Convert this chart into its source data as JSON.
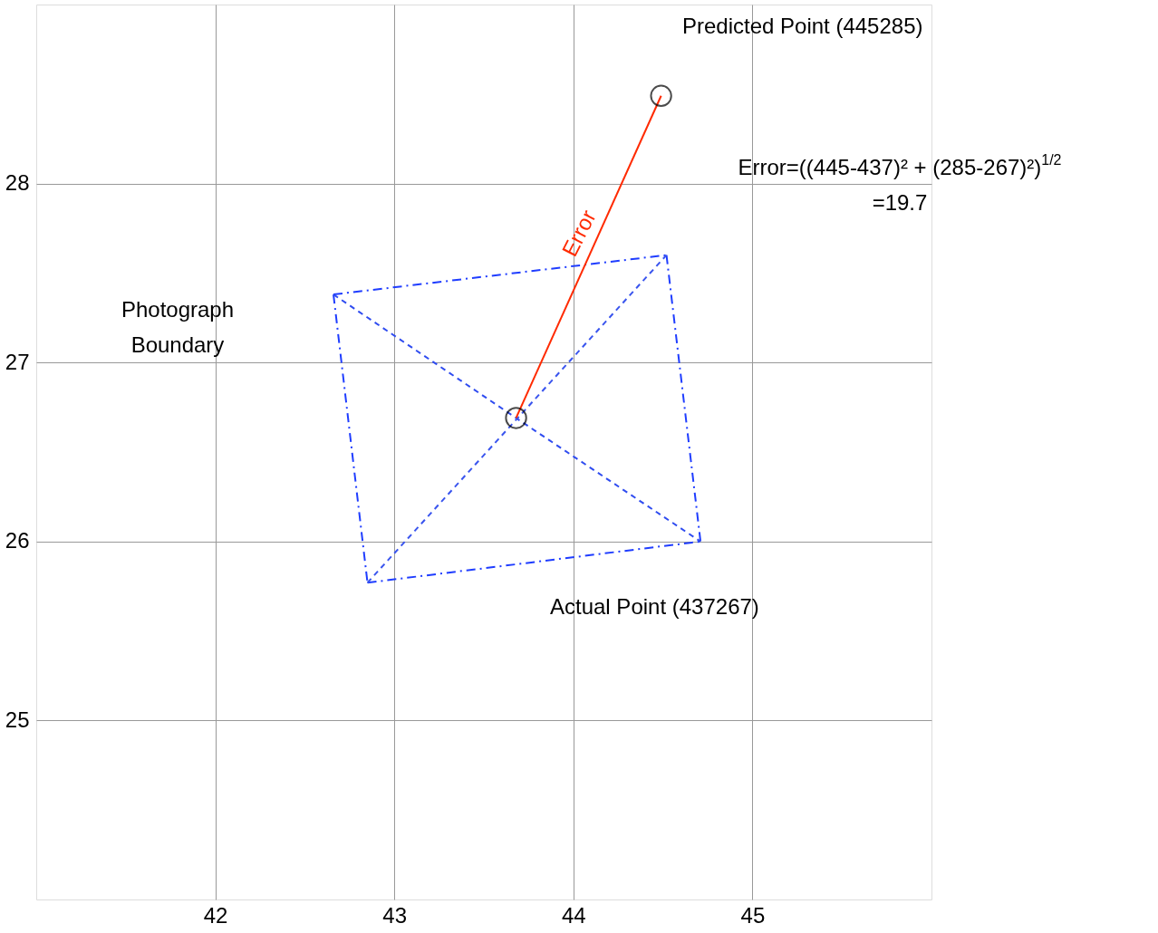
{
  "chart_data": {
    "type": "line",
    "xlim": [
      41,
      46
    ],
    "ylim": [
      24,
      29
    ],
    "xticks": [
      42,
      43,
      44,
      45
    ],
    "yticks": [
      25,
      26,
      27,
      28
    ],
    "grid": true,
    "series": [
      {
        "color": "#1f3dff",
        "line_style": "dashdot",
        "x": [
          42.66,
          44.52
        ],
        "values": [
          27.38,
          27.6
        ]
      },
      {
        "color": "#1f3dff",
        "line_style": "dashdot",
        "x": [
          44.52,
          44.71
        ],
        "values": [
          27.6,
          26.0
        ]
      },
      {
        "color": "#1f3dff",
        "line_style": "dashdot",
        "x": [
          42.85,
          44.71
        ],
        "values": [
          25.77,
          26.0
        ]
      },
      {
        "color": "#1f3dff",
        "line_style": "dashdot",
        "x": [
          42.66,
          42.85
        ],
        "values": [
          27.38,
          25.77
        ]
      },
      {
        "color": "#2f4cf0",
        "line_style": "dashed",
        "x": [
          42.66,
          43.68,
          44.71
        ],
        "values": [
          27.38,
          26.69,
          26.0
        ]
      },
      {
        "color": "#3a55ee",
        "line_style": "dashed",
        "x": [
          42.85,
          43.68,
          44.52
        ],
        "values": [
          25.77,
          26.68,
          27.6
        ]
      },
      {
        "color": "#ff2a00",
        "line_style": "solid",
        "x": [
          43.68,
          44.49
        ],
        "values": [
          26.69,
          28.49
        ]
      },
      {
        "type": "scatter",
        "color": "#000000",
        "marker": "circle",
        "x": [
          43.68,
          44.49
        ],
        "values": [
          26.69,
          28.49
        ]
      }
    ],
    "annotations": [
      "Predicted Point (445285)",
      "Error=((445-437)² + (285-267)²)$^{1/2}$\n=19.7",
      "Photograph\nBoundary",
      "Actual Point (437267)",
      "Error"
    ]
  }
}
